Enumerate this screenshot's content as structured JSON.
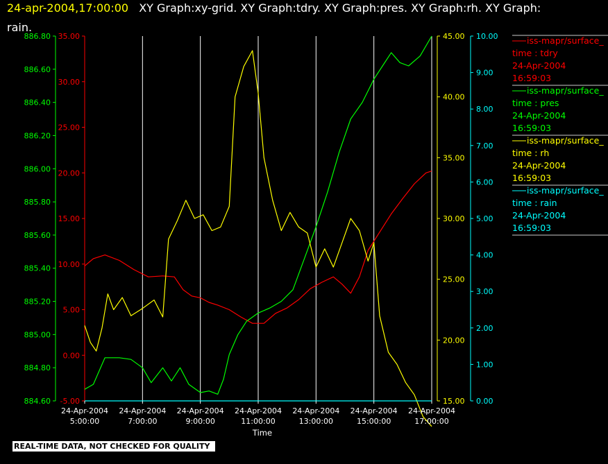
{
  "header": {
    "timestamp": "24-apr-2004,17:00:00",
    "graphs_line1": "XY Graph:xy-grid.  XY Graph:tdry.  XY Graph:pres.  XY Graph:rh.  XY Graph:",
    "graphs_line2": "rain."
  },
  "footer": {
    "quality_note": "REAL-TIME DATA, NOT CHECKED FOR QUALITY"
  },
  "colors": {
    "tdry": "#ff0000",
    "pres": "#00ff00",
    "rh": "#ffff00",
    "rain": "#00ffff",
    "grid": "#ffffff",
    "background": "#000000"
  },
  "chart_data": {
    "type": "line",
    "xlabel": "Time",
    "x_ticks": [
      {
        "date": "24-Apr-2004",
        "time": "5:00:00",
        "hour": 5
      },
      {
        "date": "24-Apr-2004",
        "time": "7:00:00",
        "hour": 7
      },
      {
        "date": "24-Apr-2004",
        "time": "9:00:00",
        "hour": 9
      },
      {
        "date": "24-Apr-2004",
        "time": "11:00:00",
        "hour": 11
      },
      {
        "date": "24-Apr-2004",
        "time": "13:00:00",
        "hour": 13
      },
      {
        "date": "24-Apr-2004",
        "time": "15:00:00",
        "hour": 15
      },
      {
        "date": "24-Apr-2004",
        "time": "17:00:00",
        "hour": 17
      }
    ],
    "xlim": [
      5,
      17
    ],
    "grid": true,
    "axes": {
      "tdry": {
        "range": [
          -5,
          35
        ],
        "ticks": [
          "-5.00",
          "0.00",
          "5.00",
          "10.00",
          "15.00",
          "20.00",
          "25.00",
          "30.00",
          "35.00"
        ]
      },
      "pres": {
        "range": [
          884.6,
          886.8
        ],
        "ticks": [
          "884.60",
          "884.80",
          "885.00",
          "885.20",
          "885.40",
          "885.60",
          "885.80",
          "886.00",
          "886.20",
          "886.40",
          "886.60",
          "886.80"
        ]
      },
      "rh": {
        "range": [
          15,
          45
        ],
        "ticks": [
          "15.00",
          "20.00",
          "25.00",
          "30.00",
          "35.00",
          "40.00",
          "45.00"
        ]
      },
      "rain": {
        "range": [
          0,
          10
        ],
        "ticks": [
          "0.00",
          "1.00",
          "2.00",
          "3.00",
          "4.00",
          "5.00",
          "6.00",
          "7.00",
          "8.00",
          "9.00",
          "10.00"
        ]
      }
    },
    "legend": [
      {
        "key": "tdry",
        "source": "iss-mapr/surface_",
        "var": "time : tdry",
        "date": "24-Apr-2004",
        "time": "16:59:03"
      },
      {
        "key": "pres",
        "source": "iss-mapr/surface_",
        "var": "time : pres",
        "date": "24-Apr-2004",
        "time": "16:59:03"
      },
      {
        "key": "rh",
        "source": "iss-mapr/surface_",
        "var": "time : rh",
        "date": "24-Apr-2004",
        "time": "16:59:03"
      },
      {
        "key": "rain",
        "source": "iss-mapr/surface_",
        "var": "time : rain",
        "date": "24-Apr-2004",
        "time": "16:59:03"
      }
    ],
    "series": [
      {
        "name": "tdry",
        "axis": "tdry",
        "points": [
          [
            5.0,
            9.8
          ],
          [
            5.3,
            10.6
          ],
          [
            5.7,
            11.0
          ],
          [
            6.2,
            10.4
          ],
          [
            6.7,
            9.4
          ],
          [
            7.2,
            8.6
          ],
          [
            7.7,
            8.7
          ],
          [
            8.1,
            8.6
          ],
          [
            8.4,
            7.2
          ],
          [
            8.7,
            6.5
          ],
          [
            9.0,
            6.3
          ],
          [
            9.3,
            5.8
          ],
          [
            9.6,
            5.5
          ],
          [
            10.0,
            5.0
          ],
          [
            10.4,
            4.2
          ],
          [
            10.8,
            3.5
          ],
          [
            11.2,
            3.5
          ],
          [
            11.6,
            4.6
          ],
          [
            12.0,
            5.2
          ],
          [
            12.4,
            6.1
          ],
          [
            12.8,
            7.3
          ],
          [
            13.2,
            8.0
          ],
          [
            13.6,
            8.6
          ],
          [
            13.9,
            7.8
          ],
          [
            14.2,
            6.8
          ],
          [
            14.5,
            8.6
          ],
          [
            14.8,
            11.5
          ],
          [
            15.2,
            13.5
          ],
          [
            15.6,
            15.5
          ],
          [
            16.0,
            17.2
          ],
          [
            16.4,
            18.8
          ],
          [
            16.8,
            20.0
          ],
          [
            17.0,
            20.2
          ]
        ]
      },
      {
        "name": "pres",
        "axis": "pres",
        "points": [
          [
            5.0,
            884.67
          ],
          [
            5.3,
            884.7
          ],
          [
            5.7,
            884.86
          ],
          [
            6.2,
            884.86
          ],
          [
            6.6,
            884.85
          ],
          [
            7.0,
            884.8
          ],
          [
            7.3,
            884.71
          ],
          [
            7.7,
            884.8
          ],
          [
            8.0,
            884.72
          ],
          [
            8.3,
            884.8
          ],
          [
            8.6,
            884.7
          ],
          [
            9.0,
            884.65
          ],
          [
            9.3,
            884.66
          ],
          [
            9.6,
            884.64
          ],
          [
            9.8,
            884.73
          ],
          [
            10.0,
            884.88
          ],
          [
            10.3,
            885.0
          ],
          [
            10.6,
            885.08
          ],
          [
            11.0,
            885.13
          ],
          [
            11.4,
            885.16
          ],
          [
            11.8,
            885.2
          ],
          [
            12.2,
            885.27
          ],
          [
            12.6,
            885.46
          ],
          [
            13.0,
            885.65
          ],
          [
            13.4,
            885.86
          ],
          [
            13.8,
            886.1
          ],
          [
            14.2,
            886.3
          ],
          [
            14.6,
            886.4
          ],
          [
            15.0,
            886.54
          ],
          [
            15.3,
            886.62
          ],
          [
            15.6,
            886.7
          ],
          [
            15.9,
            886.64
          ],
          [
            16.2,
            886.62
          ],
          [
            16.6,
            886.68
          ],
          [
            17.0,
            886.8
          ]
        ]
      },
      {
        "name": "rh",
        "axis": "rh",
        "points": [
          [
            5.0,
            21.2
          ],
          [
            5.2,
            19.8
          ],
          [
            5.4,
            19.1
          ],
          [
            5.6,
            21.0
          ],
          [
            5.8,
            23.8
          ],
          [
            6.0,
            22.5
          ],
          [
            6.3,
            23.5
          ],
          [
            6.6,
            22.0
          ],
          [
            7.0,
            22.6
          ],
          [
            7.4,
            23.3
          ],
          [
            7.7,
            21.9
          ],
          [
            7.9,
            28.3
          ],
          [
            8.2,
            29.8
          ],
          [
            8.5,
            31.5
          ],
          [
            8.8,
            30.0
          ],
          [
            9.1,
            30.3
          ],
          [
            9.4,
            29.0
          ],
          [
            9.7,
            29.3
          ],
          [
            10.0,
            31.0
          ],
          [
            10.2,
            40.0
          ],
          [
            10.5,
            42.5
          ],
          [
            10.8,
            43.8
          ],
          [
            11.0,
            40.3
          ],
          [
            11.2,
            35.0
          ],
          [
            11.5,
            31.5
          ],
          [
            11.8,
            29.0
          ],
          [
            12.1,
            30.5
          ],
          [
            12.4,
            29.3
          ],
          [
            12.7,
            28.8
          ],
          [
            13.0,
            26.0
          ],
          [
            13.3,
            27.5
          ],
          [
            13.6,
            26.0
          ],
          [
            13.9,
            28.0
          ],
          [
            14.2,
            30.0
          ],
          [
            14.5,
            29.0
          ],
          [
            14.8,
            26.5
          ],
          [
            15.0,
            28.0
          ],
          [
            15.2,
            22.0
          ],
          [
            15.5,
            19.0
          ],
          [
            15.8,
            18.0
          ],
          [
            16.1,
            16.5
          ],
          [
            16.4,
            15.5
          ],
          [
            16.7,
            13.7
          ],
          [
            17.0,
            12.9
          ]
        ]
      },
      {
        "name": "rain",
        "axis": "rain",
        "points": [
          [
            5.0,
            0.0
          ],
          [
            17.0,
            0.0
          ]
        ]
      }
    ]
  }
}
